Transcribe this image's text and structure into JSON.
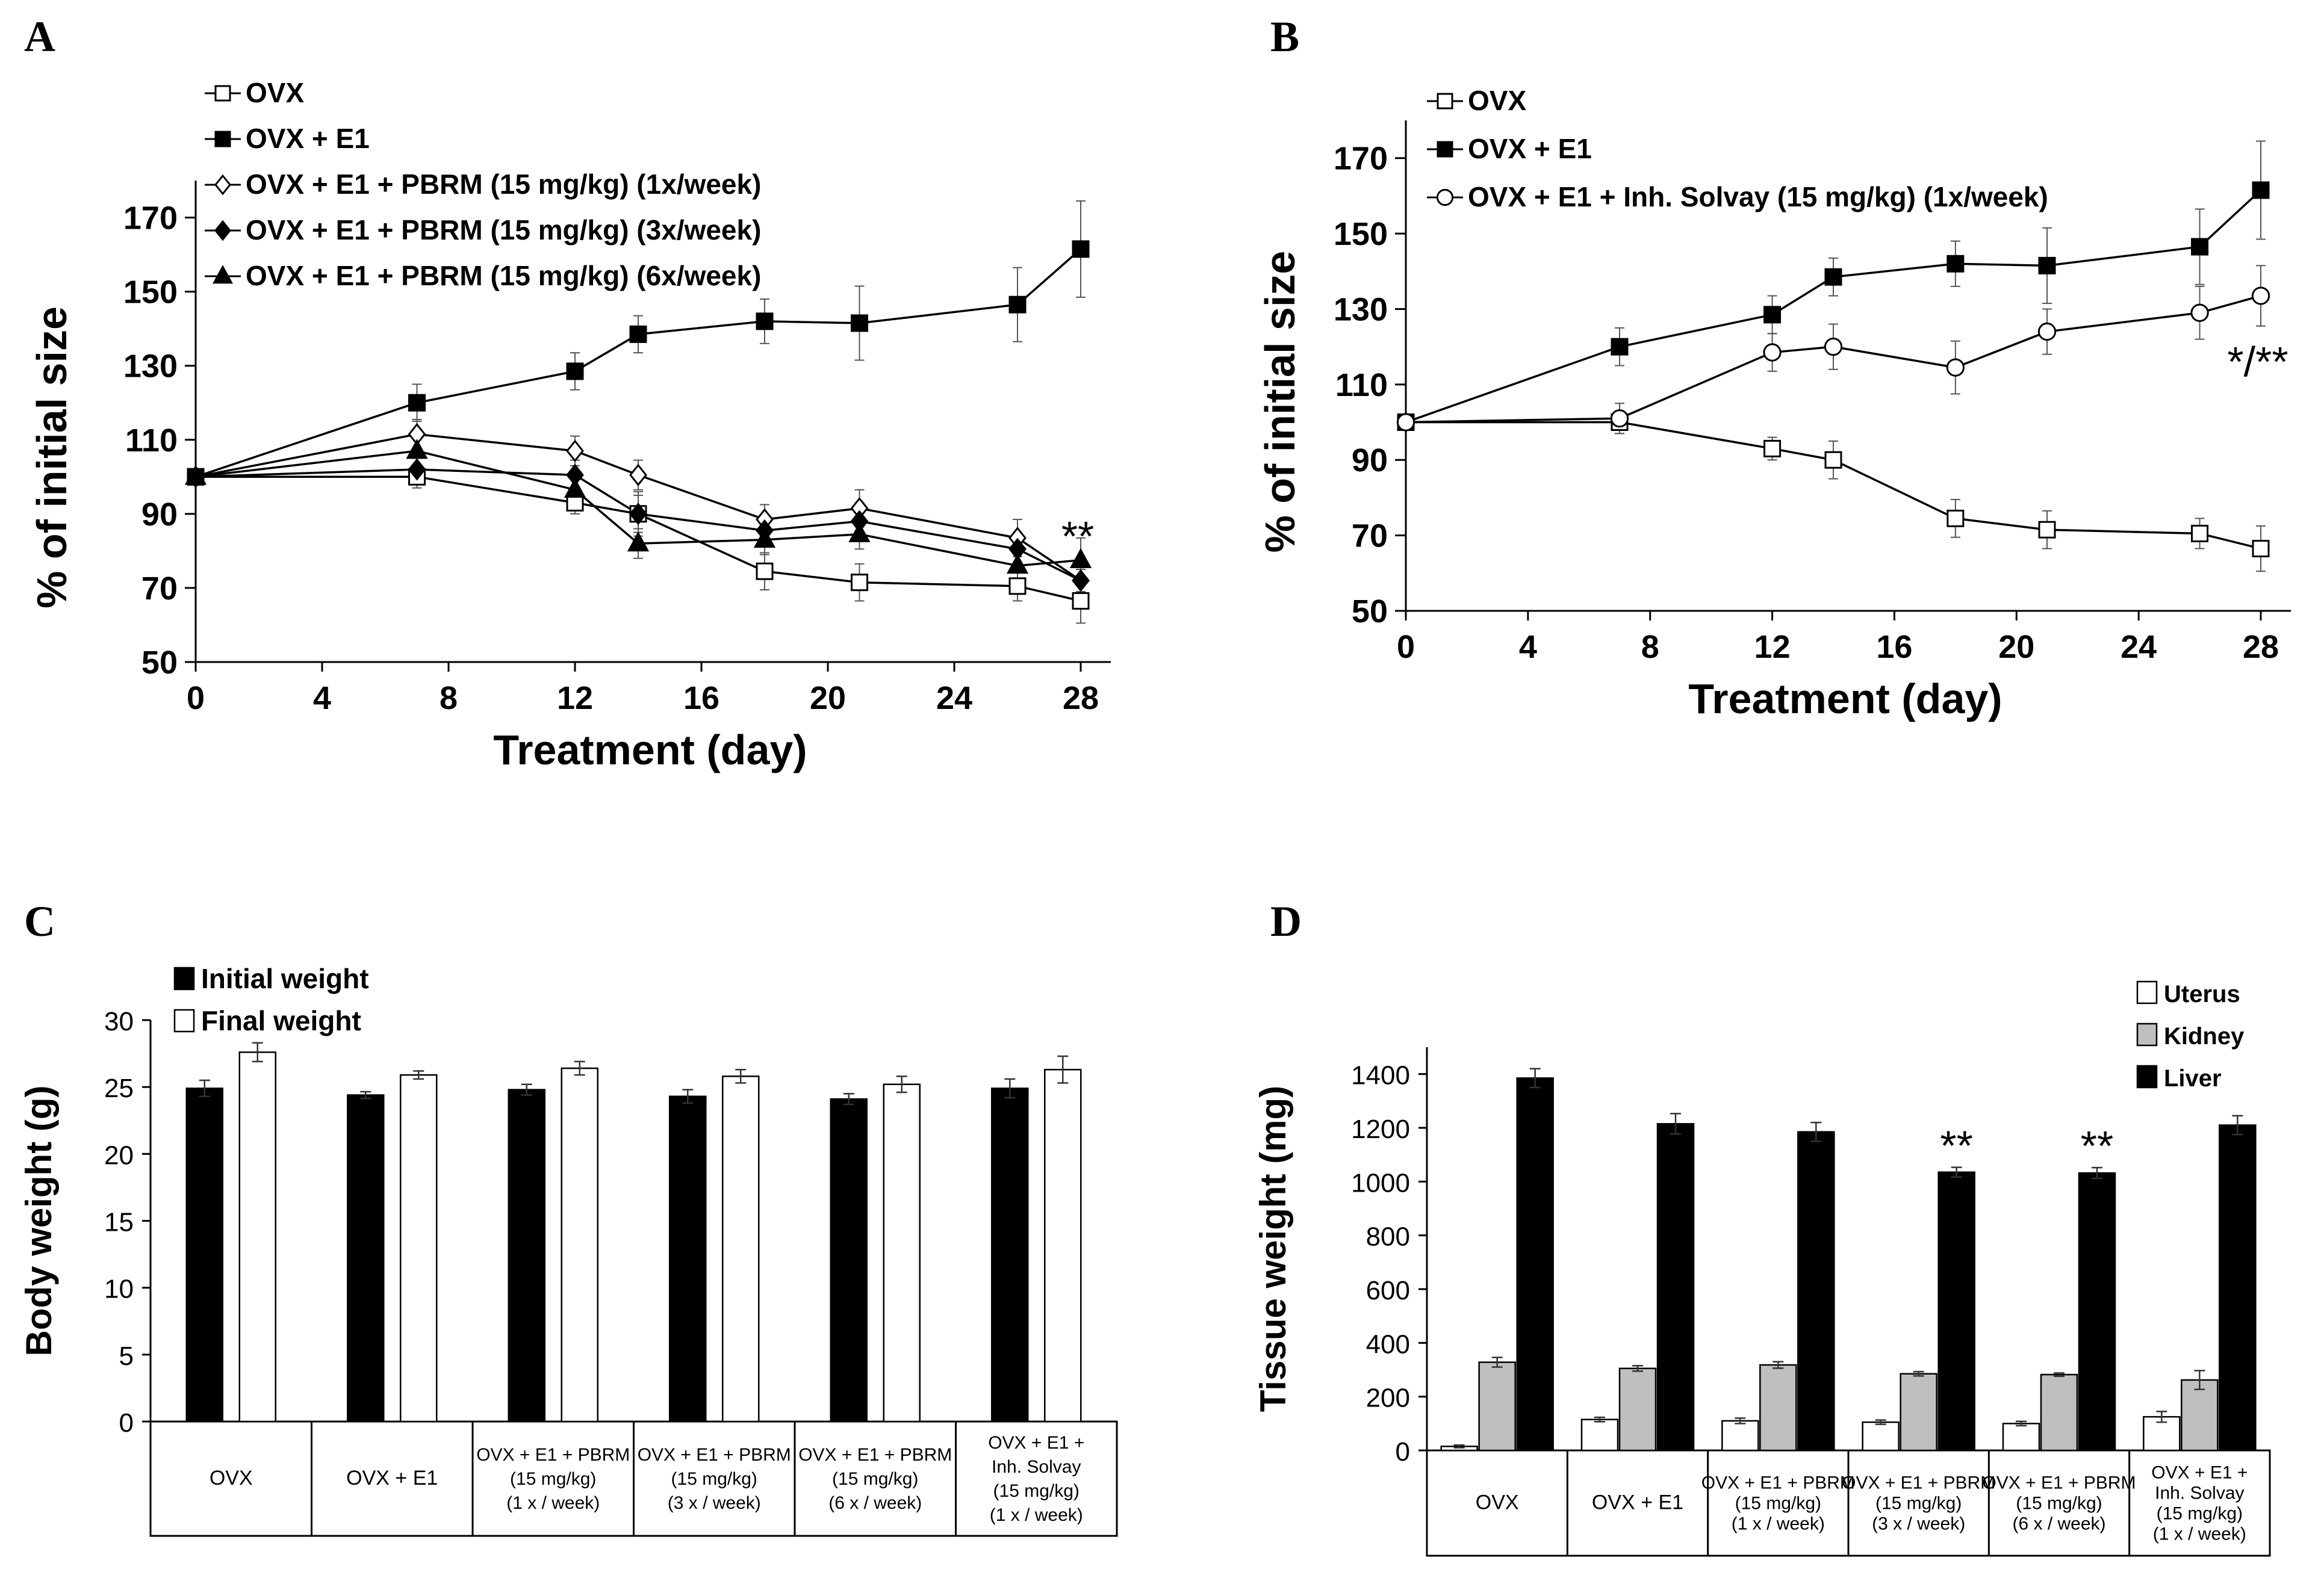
{
  "panels": {
    "A": "A",
    "B": "B",
    "C": "C",
    "D": "D"
  },
  "chart_data": [
    {
      "id": "A",
      "type": "line",
      "xlabel": "Treatment (day)",
      "ylabel": "% of initial size",
      "xlim": [
        0,
        28
      ],
      "ylim": [
        50,
        180
      ],
      "xticks": [
        0,
        4,
        8,
        12,
        16,
        20,
        24,
        28
      ],
      "yticks": [
        50,
        70,
        90,
        110,
        130,
        150,
        170
      ],
      "x": [
        0,
        7,
        12,
        14,
        18,
        21,
        26,
        28
      ],
      "series": [
        {
          "name": "OVX",
          "marker": "square-open",
          "values": [
            100,
            100,
            93,
            90,
            74.5,
            71.5,
            70.5,
            66.5
          ],
          "err": [
            0,
            3,
            3,
            5,
            5,
            5,
            4,
            6
          ]
        },
        {
          "name": "OVX + E1",
          "marker": "square-filled",
          "values": [
            100,
            120,
            128.5,
            138.5,
            142,
            141.5,
            146.5,
            161.5
          ],
          "err": [
            0,
            5,
            5,
            5,
            6,
            10,
            10,
            13
          ]
        },
        {
          "name": "OVX + E1 + PBRM (15 mg/kg) (1x/week)",
          "marker": "diamond-open",
          "values": [
            100,
            111.5,
            107,
            100.5,
            88.5,
            91.5,
            83.5,
            72
          ],
          "err": [
            0,
            4,
            4,
            4,
            4,
            5,
            5,
            3
          ]
        },
        {
          "name": "OVX + E1 + PBRM (15 mg/kg) (3x/week)",
          "marker": "diamond-filled",
          "values": [
            100,
            102,
            100.5,
            90,
            85.5,
            88,
            80.5,
            72
          ],
          "err": [
            0,
            3,
            4,
            6,
            4,
            5,
            4,
            3
          ]
        },
        {
          "name": "OVX + E1 + PBRM (15 mg/kg) (6x/week)",
          "marker": "triangle-filled",
          "values": [
            100,
            107,
            96.5,
            82,
            83,
            84.5,
            76,
            77.5
          ],
          "err": [
            0,
            4,
            4,
            4,
            4,
            4,
            4,
            6
          ]
        }
      ],
      "annotation": "**"
    },
    {
      "id": "B",
      "type": "line",
      "xlabel": "Treatment (day)",
      "ylabel": "% of initial size",
      "xlim": [
        0,
        28
      ],
      "ylim": [
        50,
        180
      ],
      "xticks": [
        0,
        4,
        8,
        12,
        16,
        20,
        24,
        28
      ],
      "yticks": [
        50,
        70,
        90,
        110,
        130,
        150,
        170
      ],
      "x": [
        0,
        7,
        12,
        14,
        18,
        21,
        26,
        28
      ],
      "series": [
        {
          "name": "OVX",
          "marker": "square-open",
          "values": [
            100,
            100,
            93,
            90,
            74.5,
            71.5,
            70.5,
            66.5
          ],
          "err": [
            0,
            3,
            3,
            5,
            5,
            5,
            4,
            6
          ]
        },
        {
          "name": "OVX + E1",
          "marker": "square-filled",
          "values": [
            100,
            120,
            128.5,
            138.5,
            142,
            141.5,
            146.5,
            161.5
          ],
          "err": [
            0,
            5,
            5,
            5,
            6,
            10,
            10,
            13
          ]
        },
        {
          "name": "OVX + E1 + Inh. Solvay (15 mg/kg) (1x/week)",
          "marker": "circle-open",
          "values": [
            100,
            101,
            118.5,
            120,
            114.5,
            124,
            129,
            133.5
          ],
          "err": [
            0,
            4,
            5,
            6,
            7,
            6,
            7,
            8
          ]
        }
      ],
      "annotation": "*/**"
    },
    {
      "id": "C",
      "type": "bar",
      "ylabel": "Body weight (g)",
      "ylim": [
        0,
        30
      ],
      "yticks": [
        0,
        5,
        10,
        15,
        20,
        25,
        30
      ],
      "categories": [
        [
          "OVX"
        ],
        [
          "OVX + E1"
        ],
        [
          "OVX + E1 + PBRM",
          "(15 mg/kg)",
          "(1 x / week)"
        ],
        [
          "OVX + E1 + PBRM",
          "(15 mg/kg)",
          "(3 x / week)"
        ],
        [
          "OVX + E1 + PBRM",
          "(15 mg/kg)",
          "(6 x / week)"
        ],
        [
          "OVX + E1 +",
          "Inh. Solvay",
          "(15 mg/kg)",
          "(1 x / week)"
        ]
      ],
      "series": [
        {
          "name": "Initial weight",
          "fill": "#000000",
          "values": [
            24.9,
            24.4,
            24.8,
            24.3,
            24.1,
            24.9
          ],
          "err": [
            0.6,
            0.25,
            0.4,
            0.5,
            0.4,
            0.7
          ]
        },
        {
          "name": "Final weight",
          "fill": "#ffffff",
          "values": [
            27.6,
            25.9,
            26.4,
            25.8,
            25.2,
            26.3
          ],
          "err": [
            0.7,
            0.3,
            0.5,
            0.5,
            0.6,
            1.0
          ]
        }
      ]
    },
    {
      "id": "D",
      "type": "bar",
      "ylabel": "Tissue weight (mg)",
      "ylim": [
        0,
        1500
      ],
      "yticks": [
        0,
        200,
        400,
        600,
        800,
        1000,
        1200,
        1400
      ],
      "categories": [
        [
          "OVX"
        ],
        [
          "OVX + E1"
        ],
        [
          "OVX + E1 + PBRM",
          "(15 mg/kg)",
          "(1 x / week)"
        ],
        [
          "OVX + E1 + PBRM",
          "(15 mg/kg)",
          "(3 x / week)"
        ],
        [
          "OVX + E1 + PBRM",
          "(15 mg/kg)",
          "(6 x / week)"
        ],
        [
          "OVX + E1 +",
          "Inh. Solvay",
          "(15 mg/kg)",
          "(1 x / week)"
        ]
      ],
      "series": [
        {
          "name": "Uterus",
          "fill": "#ffffff",
          "values": [
            15,
            115,
            110,
            105,
            100,
            125
          ],
          "err": [
            5,
            8,
            10,
            8,
            8,
            20
          ]
        },
        {
          "name": "Kidney",
          "fill": "#bfbfbf",
          "values": [
            328,
            305,
            318,
            285,
            282,
            262
          ],
          "err": [
            18,
            10,
            12,
            8,
            6,
            35
          ]
        },
        {
          "name": "Liver",
          "fill": "#000000",
          "values": [
            1385,
            1215,
            1185,
            1035,
            1032,
            1210
          ],
          "err": [
            35,
            38,
            35,
            18,
            20,
            35
          ]
        }
      ],
      "annotations": [
        {
          "category_index": 3,
          "text": "**"
        },
        {
          "category_index": 4,
          "text": "**"
        }
      ]
    }
  ]
}
